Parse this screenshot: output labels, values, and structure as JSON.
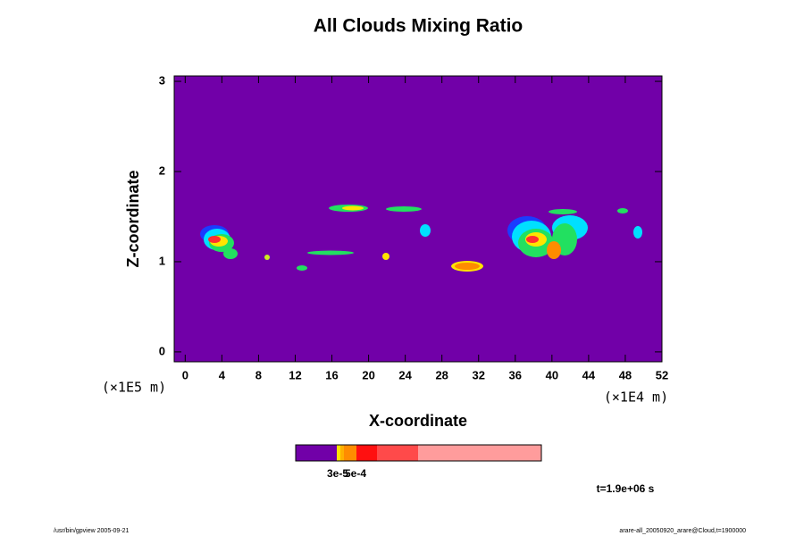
{
  "chart_data": {
    "type": "contour",
    "title": "All Clouds Mixing Ratio",
    "xlabel": "X-coordinate",
    "ylabel": "Z-coordinate",
    "x_unit": "(×1E4 m)",
    "y_unit": "(×1E5 m)",
    "xlim": [
      -1.2,
      52
    ],
    "ylim": [
      -0.11,
      3.06
    ],
    "xticks": [
      0,
      4,
      8,
      12,
      16,
      20,
      24,
      28,
      32,
      36,
      40,
      44,
      48,
      52
    ],
    "yticks": [
      0,
      1,
      2,
      3
    ],
    "colorbar_labels": [
      "3e-5",
      "5e-4"
    ],
    "time_label": "t=1.9e+06 s",
    "footer_left": "/usr/bin/gpview 2005-09-21",
    "footer_right": "arare-all_20050920_arare@Cloud,t=1900000"
  }
}
